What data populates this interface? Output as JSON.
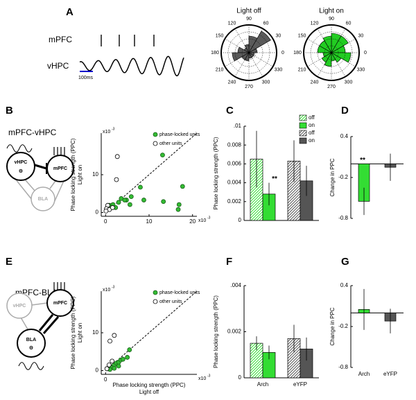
{
  "panel_labels": [
    "A",
    "B",
    "C",
    "D",
    "E",
    "F",
    "G"
  ],
  "panel_a": {
    "traces": [
      "mPFC",
      "vHPC"
    ],
    "scale_bar": "100ms"
  },
  "diagrams": [
    {
      "title": "mPFC-vHPC",
      "nodes": [
        "vHPC",
        "mPFC",
        "BLA"
      ],
      "rhythm": "Θ"
    },
    {
      "title": "mPFC-BLA",
      "nodes": [
        "vHPC",
        "mPFC",
        "BLA"
      ],
      "rhythm": "Θ"
    }
  ],
  "chart_data": [
    {
      "type": "polar",
      "title": "Light off",
      "angle_ticks": [
        90,
        60,
        30,
        0,
        330,
        300,
        270,
        240,
        210,
        180,
        150,
        120
      ],
      "x": [
        15,
        45,
        75,
        105,
        135,
        165,
        195,
        225,
        255,
        285,
        315,
        345
      ],
      "values": [
        0.3,
        0.9,
        0.6,
        0.3,
        0.2,
        0.4,
        0.6,
        0.3,
        0.3,
        0.2,
        0.2,
        0.2
      ],
      "color": "#5a5a5a",
      "rlim": [
        0,
        1
      ]
    },
    {
      "type": "polar",
      "title": "Light on",
      "angle_ticks": [
        90,
        60,
        30,
        0,
        330,
        300,
        270,
        240,
        210,
        180,
        150,
        120
      ],
      "x": [
        15,
        45,
        75,
        105,
        135,
        165,
        195,
        225,
        255,
        285,
        315,
        345
      ],
      "values": [
        0.5,
        0.7,
        0.7,
        0.6,
        0.5,
        0.5,
        0.3,
        0.4,
        0.5,
        0.3,
        0.4,
        0.7
      ],
      "color": "#22cc22",
      "rlim": [
        0,
        1
      ]
    },
    {
      "type": "scatter",
      "ylabel": [
        "Phase locking strength (PPC)",
        "Light on"
      ],
      "x_multiplier": {
        "base": "x10",
        "exp": "-3"
      },
      "y_multiplier": {
        "base": "x10",
        "exp": "-3"
      },
      "xlim": [
        -1,
        21
      ],
      "ylim": [
        -1,
        21
      ],
      "xticks": [
        0,
        10,
        20
      ],
      "yticks": [
        0,
        10
      ],
      "legend": "upper right",
      "diagonal": true,
      "series": [
        {
          "name": "phase-locked units",
          "color": "#33bb33",
          "edge": "#1a5e1a",
          "x": [
            13.1,
            17.7,
            8.0,
            5.9,
            8.8,
            4.8,
            13.3,
            16.9,
            16.7,
            5.6,
            0.5,
            0.9,
            1.7,
            2.3,
            3.0,
            3.6,
            4.4
          ],
          "values": [
            15.2,
            6.9,
            6.7,
            4.2,
            3.3,
            3.3,
            2.9,
            2.1,
            0.8,
            2.1,
            1.0,
            1.9,
            2.1,
            1.3,
            2.7,
            3.7,
            3.3
          ]
        },
        {
          "name": "other units",
          "color": "#ffffff",
          "edge": "#000000",
          "x": [
            2.7,
            2.5,
            0.5,
            0.2,
            0.9,
            0.1,
            1.6
          ],
          "values": [
            14.8,
            8.7,
            1.9,
            1.0,
            0.8,
            0.4,
            1.3
          ]
        }
      ]
    },
    {
      "type": "bar",
      "ylabel": [
        "Phase locking strength (PPC)"
      ],
      "ylim": [
        0,
        0.01
      ],
      "yticks": [
        0,
        0.002,
        0.004,
        0.006,
        0.008,
        {
          "value": 0.01,
          "label": ".01"
        }
      ],
      "legend": "upper right",
      "categories": [
        null,
        null
      ],
      "series": [
        {
          "name": "off",
          "color": "#33dd33",
          "hatch": true,
          "values": [
            0.0065,
            null
          ],
          "errors": [
            0.003,
            null
          ]
        },
        {
          "name": "on",
          "color": "#33dd33",
          "values": [
            0.0028,
            null
          ],
          "errors": [
            0.0012,
            null
          ],
          "annotation": "**"
        },
        {
          "name": "off",
          "color": "#555555",
          "hatch": true,
          "values": [
            null,
            0.0063
          ],
          "errors": [
            null,
            0.0022
          ]
        },
        {
          "name": "on",
          "color": "#555555",
          "values": [
            null,
            0.0042
          ],
          "errors": [
            null,
            0.0016
          ]
        }
      ]
    },
    {
      "type": "bar",
      "ylabel": [
        "Change in PPC"
      ],
      "ylim": [
        -0.8,
        0.4
      ],
      "yticks": [
        0.4,
        -0.2,
        -0.8
      ],
      "zero_line": true,
      "categories": [
        null,
        null
      ],
      "series": [
        {
          "color": "#33dd33",
          "values": [
            -0.55,
            null
          ],
          "errors": [
            0.2,
            null
          ],
          "annotation": "**"
        },
        {
          "color": "#555555",
          "values": [
            null,
            -0.05
          ],
          "errors": [
            null,
            0.2
          ]
        }
      ]
    },
    {
      "type": "scatter",
      "ylabel": [
        "Phase locking strength (PPC)",
        "Light on"
      ],
      "xlabel": [
        "Phase locking strength (PPC)",
        "Light off"
      ],
      "x_multiplier": {
        "base": "x10",
        "exp": "-3"
      },
      "y_multiplier": {
        "base": "x10",
        "exp": "-3"
      },
      "xlim": [
        -1,
        21
      ],
      "ylim": [
        -1,
        21
      ],
      "xticks": [
        0
      ],
      "yticks": [
        0,
        10
      ],
      "legend": "upper right",
      "diagonal": true,
      "series": [
        {
          "name": "phase-locked units",
          "color": "#33bb33",
          "edge": "#1a5e1a",
          "x": [
            0.5,
            1.0,
            1.5,
            2.0,
            2.5,
            3.0,
            3.5,
            4.0,
            5.0,
            5.5,
            2.0,
            3.0,
            1.0
          ],
          "values": [
            0.5,
            1.2,
            0.8,
            1.5,
            2.0,
            2.2,
            2.8,
            3.0,
            3.5,
            5.5,
            0.6,
            1.2,
            0.3
          ]
        },
        {
          "name": "other units",
          "color": "#ffffff",
          "edge": "#000000",
          "x": [
            1.0,
            2.0,
            0.3,
            0.8,
            1.5
          ],
          "values": [
            7.8,
            9.3,
            0.5,
            1.5,
            2.5
          ]
        }
      ]
    },
    {
      "type": "bar",
      "ylabel": [
        "Phase locking strength (PPC)"
      ],
      "ylim": [
        0,
        0.004
      ],
      "yticks": [
        0,
        0.002,
        {
          "value": 0.004,
          "label": ".004"
        }
      ],
      "categories": [
        "Arch",
        "eYFP"
      ],
      "series": [
        {
          "color": "#33dd33",
          "hatch": true,
          "values": [
            0.0015,
            null
          ],
          "errors": [
            0.0003,
            null
          ]
        },
        {
          "color": "#33dd33",
          "values": [
            0.0011,
            null
          ],
          "errors": [
            0.0003,
            null
          ]
        },
        {
          "color": "#555555",
          "hatch": true,
          "values": [
            null,
            0.0017
          ],
          "errors": [
            null,
            0.0006
          ]
        },
        {
          "color": "#555555",
          "values": [
            null,
            0.00125
          ],
          "errors": [
            null,
            0.0005
          ]
        }
      ]
    },
    {
      "type": "bar",
      "ylabel": [
        "Change in PPC"
      ],
      "ylim": [
        -0.8,
        0.4
      ],
      "yticks": [
        0.4,
        -0.2,
        -0.8
      ],
      "zero_line": true,
      "categories": [
        "Arch",
        "eYFP"
      ],
      "series": [
        {
          "color": "#33dd33",
          "values": [
            0.05,
            null
          ],
          "errors": [
            0.3,
            null
          ]
        },
        {
          "color": "#555555",
          "values": [
            null,
            -0.12
          ],
          "errors": [
            null,
            0.18
          ]
        }
      ]
    }
  ]
}
